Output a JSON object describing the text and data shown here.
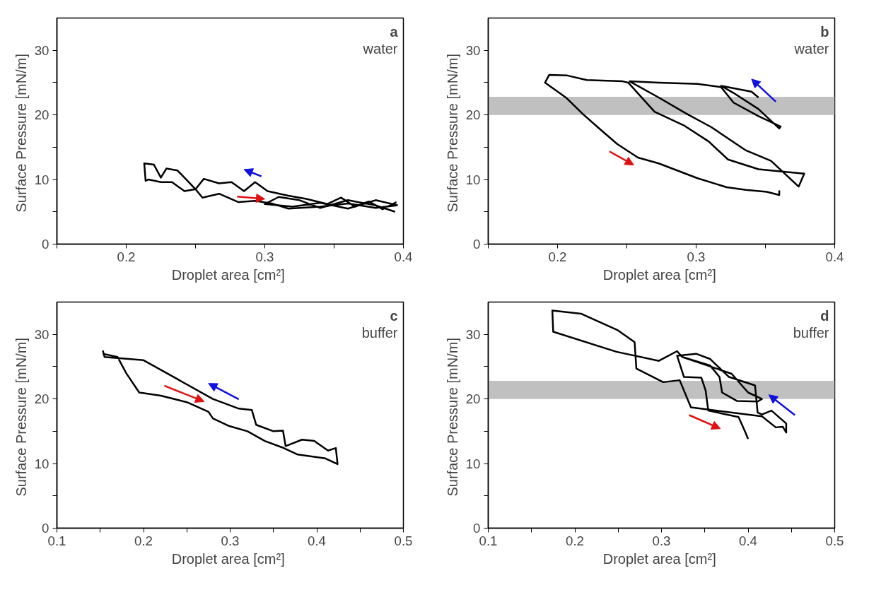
{
  "chart_data": [
    {
      "type": "line",
      "xlabel": "Droplet area  [cm²]",
      "ylabel": "Surface Pressure  [mN/m]",
      "annotations": [
        "a",
        "water"
      ],
      "xlim": [
        0.15,
        0.4
      ],
      "ylim": [
        0,
        35
      ],
      "xticks": [
        {
          "value": 0.15,
          "label": null
        },
        0.2,
        {
          "value": 0.25,
          "label": null
        },
        0.3,
        {
          "value": 0.35,
          "label": null
        },
        0.4
      ],
      "yticks": [
        0,
        {
          "value": 5,
          "label": null
        },
        10,
        {
          "value": 15,
          "label": null
        },
        20,
        {
          "value": 25,
          "label": null
        },
        30
      ],
      "grid": false,
      "series": [
        {
          "color": "#000000",
          "x": [
            0.395,
            0.38,
            0.36,
            0.34,
            0.317,
            0.305,
            0.293,
            0.281,
            0.267,
            0.255,
            0.25,
            0.242,
            0.233,
            0.225,
            0.216,
            0.214,
            0.213,
            0.22,
            0.225,
            0.229,
            0.237,
            0.242,
            0.25,
            0.256,
            0.267,
            0.276,
            0.285,
            0.293,
            0.302,
            0.317,
            0.33,
            0.345,
            0.355,
            0.365,
            0.375,
            0.385,
            0.395
          ],
          "values": [
            6.0,
            5.6,
            6.3,
            5.8,
            5.5,
            6.3,
            6.7,
            6.5,
            7.8,
            7.2,
            8.5,
            8.2,
            9.6,
            9.6,
            10.0,
            9.8,
            12.5,
            12.3,
            10.3,
            11.7,
            11.4,
            10.3,
            8.5,
            10.1,
            9.4,
            9.6,
            8.2,
            9.6,
            8.2,
            7.5,
            7.0,
            6.2,
            7.2,
            5.8,
            6.6,
            5.4,
            6.5
          ]
        },
        {
          "color": "#000000",
          "x": [
            0.394,
            0.38,
            0.36,
            0.34,
            0.325,
            0.31,
            0.3,
            0.32,
            0.34,
            0.36,
            0.38,
            0.396
          ],
          "values": [
            5.0,
            6.0,
            6.8,
            5.6,
            6.8,
            7.3,
            6.2,
            5.8,
            6.4,
            5.5,
            6.8,
            6.0
          ]
        }
      ]
    },
    {
      "type": "line",
      "xlabel": "Droplet area  [cm²]",
      "ylabel": "Surface Pressure  [mN/m]",
      "annotations": [
        "b",
        "water"
      ],
      "xlim": [
        0.15,
        0.4
      ],
      "ylim": [
        0,
        35
      ],
      "xticks": [
        {
          "value": 0.15,
          "label": null
        },
        0.2,
        {
          "value": 0.25,
          "label": null
        },
        0.3,
        {
          "value": 0.35,
          "label": null
        },
        0.4
      ],
      "yticks": [
        0,
        {
          "value": 5,
          "label": null
        },
        10,
        {
          "value": 15,
          "label": null
        },
        20,
        {
          "value": 25,
          "label": null
        },
        30
      ],
      "grid": false,
      "bands": [
        {
          "axis": "y",
          "from": 20,
          "to": 22.8,
          "color": "#c0c0c0"
        }
      ],
      "series": [
        {
          "color": "#000000",
          "x": [
            0.36,
            0.36,
            0.351,
            0.336,
            0.322,
            0.301,
            0.273,
            0.258,
            0.243,
            0.229,
            0.218,
            0.206,
            0.191,
            0.194,
            0.207,
            0.221,
            0.247,
            0.251,
            0.27,
            0.291,
            0.309,
            0.323,
            0.345,
            0.363,
            0.378,
            0.374,
            0.354,
            0.336,
            0.311,
            0.293,
            0.273,
            0.252,
            0.273,
            0.301,
            0.318,
            0.327,
            0.345,
            0.361,
            0.36,
            0.345,
            0.327,
            0.318,
            0.34,
            0.345
          ],
          "values": [
            8.3,
            7.6,
            8.1,
            8.4,
            8.8,
            10.2,
            12.5,
            13.4,
            15.5,
            18.1,
            20.2,
            22.7,
            25.0,
            26.2,
            26.1,
            25.4,
            25.2,
            25.0,
            20.5,
            18.4,
            15.9,
            13.1,
            11.6,
            11.2,
            10.9,
            8.9,
            12.9,
            14.5,
            18.1,
            20.2,
            22.7,
            25.2,
            25.0,
            24.8,
            24.3,
            21.9,
            19.8,
            18.2,
            17.9,
            20.9,
            23.4,
            24.5,
            23.6,
            22.7
          ]
        }
      ]
    },
    {
      "type": "line",
      "xlabel": "Droplet area  [cm²]",
      "ylabel": "Surface Pressure  [mN/m]",
      "annotations": [
        "c",
        "buffer"
      ],
      "xlim": [
        0.1,
        0.5
      ],
      "ylim": [
        0,
        35
      ],
      "xticks": [
        0.1,
        {
          "value": 0.15,
          "label": null
        },
        0.2,
        {
          "value": 0.25,
          "label": null
        },
        0.3,
        {
          "value": 0.35,
          "label": null
        },
        0.4,
        {
          "value": 0.45,
          "label": null
        },
        0.5
      ],
      "yticks": [
        0,
        {
          "value": 5,
          "label": null
        },
        10,
        {
          "value": 15,
          "label": null
        },
        20,
        {
          "value": 25,
          "label": null
        },
        30
      ],
      "grid": false,
      "series": [
        {
          "color": "#000000",
          "x": [
            0.153,
            0.155,
            0.2,
            0.24,
            0.28,
            0.31,
            0.325,
            0.33,
            0.35,
            0.361,
            0.364,
            0.383,
            0.397,
            0.413,
            0.422,
            0.424,
            0.41,
            0.378,
            0.36,
            0.34,
            0.32,
            0.299,
            0.28,
            0.275,
            0.25,
            0.22,
            0.195,
            0.18,
            0.17,
            0.153
          ],
          "values": [
            27.5,
            26.5,
            26.0,
            23.0,
            20.0,
            18.5,
            18.3,
            16.0,
            15.0,
            15.1,
            12.7,
            13.7,
            13.5,
            12.0,
            12.4,
            9.9,
            10.8,
            11.4,
            12.5,
            13.5,
            15.0,
            15.8,
            17.0,
            18.0,
            19.5,
            20.5,
            21.0,
            24.0,
            26.5,
            27.0
          ]
        }
      ]
    },
    {
      "type": "line",
      "xlabel": "Droplet area  [cm²]",
      "ylabel": "Surface Pressure  [mN/m]",
      "annotations": [
        "d",
        "buffer"
      ],
      "xlim": [
        0.1,
        0.5
      ],
      "ylim": [
        0,
        35
      ],
      "xticks": [
        0.1,
        {
          "value": 0.15,
          "label": null
        },
        0.2,
        {
          "value": 0.25,
          "label": null
        },
        0.3,
        {
          "value": 0.35,
          "label": null
        },
        0.4,
        {
          "value": 0.45,
          "label": null
        },
        0.5
      ],
      "yticks": [
        0,
        {
          "value": 5,
          "label": null
        },
        10,
        {
          "value": 15,
          "label": null
        },
        20,
        {
          "value": 25,
          "label": null
        },
        30
      ],
      "grid": false,
      "bands": [
        {
          "axis": "y",
          "from": 20,
          "to": 22.8,
          "color": "#c0c0c0"
        }
      ],
      "series": [
        {
          "color": "#000000",
          "x": [
            0.4,
            0.397,
            0.389,
            0.354,
            0.351,
            0.346,
            0.326,
            0.318,
            0.34,
            0.356,
            0.378,
            0.408,
            0.411,
            0.416,
            0.427,
            0.444,
            0.444,
            0.44,
            0.432,
            0.416,
            0.334,
            0.321,
            0.302,
            0.271,
            0.269,
            0.25,
            0.207,
            0.174,
            0.175,
            0.248,
            0.297,
            0.318,
            0.324,
            0.356,
            0.367,
            0.37,
            0.387,
            0.411,
            0.416,
            0.4,
            0.381,
            0.324
          ],
          "values": [
            13.8,
            14.8,
            17.2,
            18.2,
            21.3,
            23.3,
            23.4,
            26.7,
            27.0,
            26.2,
            23.4,
            22.1,
            17.9,
            17.6,
            18.2,
            16.2,
            14.8,
            15.7,
            15.6,
            17.3,
            18.7,
            22.9,
            22.6,
            24.7,
            28.8,
            30.6,
            33.2,
            33.7,
            30.4,
            27.3,
            25.9,
            27.4,
            26.5,
            25.2,
            23.4,
            21.0,
            19.7,
            19.6,
            20.0,
            21.0,
            23.9,
            26.5
          ]
        }
      ]
    }
  ]
}
